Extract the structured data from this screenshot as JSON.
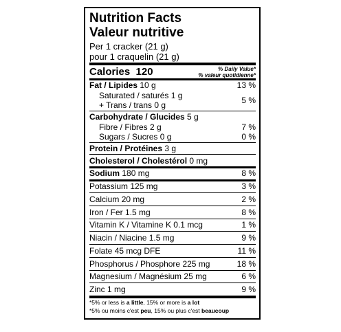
{
  "title_en": "Nutrition Facts",
  "title_fr": "Valeur nutritive",
  "serving_en": "Per 1 cracker (21 g)",
  "serving_fr": "pour 1 craquelin (21 g)",
  "calories": {
    "label": "Calories",
    "value": "120"
  },
  "dv_header_en": "% Daily Value*",
  "dv_header_fr": "% valeur quotidienne*",
  "nutrients": [
    {
      "name": "Fat / Lipides",
      "amount": "10 g",
      "dv": "13 %"
    },
    {
      "name": "Saturated / saturés",
      "amount": "1 g",
      "dv": "5 %"
    },
    {
      "name": "+ Trans / trans",
      "amount": "0 g"
    },
    {
      "name": "Carbohydrate / Glucides",
      "amount": "5 g"
    },
    {
      "name": "Fibre / Fibres",
      "amount": "2 g",
      "dv": "7 %"
    },
    {
      "name": "Sugars / Sucres",
      "amount": "0 g",
      "dv": "0 %"
    },
    {
      "name": "Protein / Protéines",
      "amount": "3 g"
    },
    {
      "name": "Cholesterol / Cholestérol",
      "amount": "0 mg"
    },
    {
      "name": "Sodium",
      "amount": "180 mg",
      "dv": "8 %"
    },
    {
      "name": "Potassium",
      "amount": "125 mg",
      "dv": "3 %"
    },
    {
      "name": "Calcium",
      "amount": "20 mg",
      "dv": "2 %"
    },
    {
      "name": "Iron / Fer",
      "amount": "1.5 mg",
      "dv": "8 %"
    },
    {
      "name": "Vitamin K / Vitamine K",
      "amount": "0.1 mcg",
      "dv": "1 %"
    },
    {
      "name": "Niacin / Niacine",
      "amount": "1.5 mg",
      "dv": "9 %"
    },
    {
      "name": "Folate",
      "amount": "45 mcg DFE",
      "dv": "11 %"
    },
    {
      "name": "Phosphorus / Phosphore",
      "amount": "225 mg",
      "dv": "18 %"
    },
    {
      "name": "Magnesium / Magnésium",
      "amount": "25 mg",
      "dv": "6 %"
    },
    {
      "name": "Zinc",
      "amount": "1 mg",
      "dv": "9 %"
    }
  ],
  "footnote_en": [
    "*5% or less is ",
    "a little",
    ", 15% or more is ",
    "a lot"
  ],
  "footnote_fr": [
    "*5% ou moins c'est ",
    "peu",
    ", 15% ou plus c'est ",
    "beaucoup"
  ]
}
